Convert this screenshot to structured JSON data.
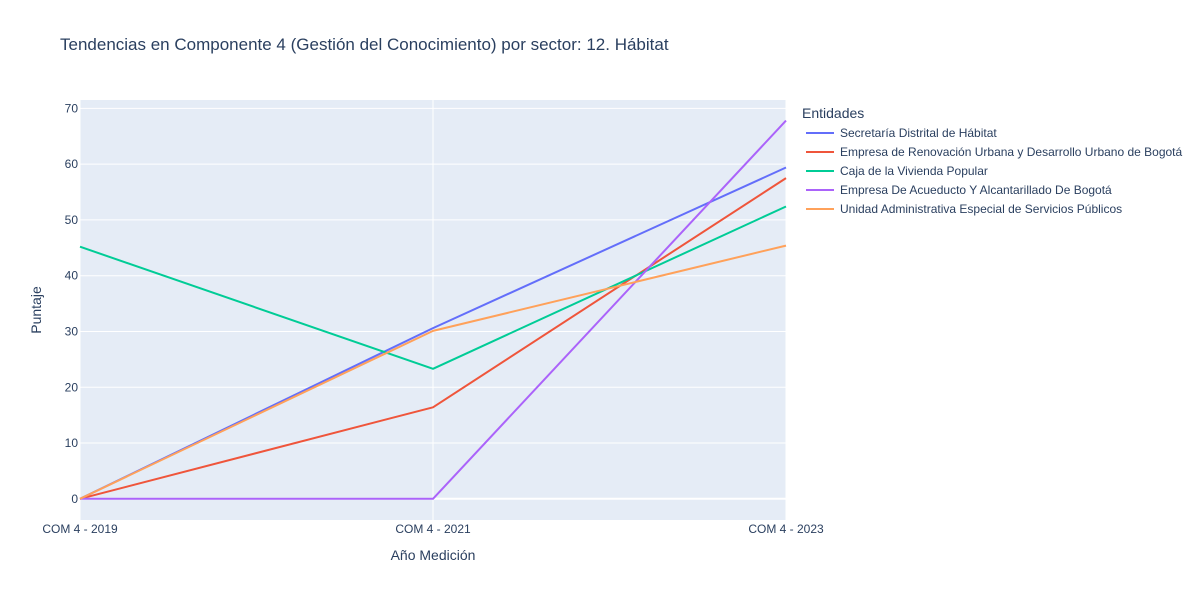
{
  "chart_data": {
    "type": "line",
    "title": "Tendencias en Componente 4 (Gestión del Conocimiento) por sector: 12. Hábitat",
    "xlabel": "Año Medición",
    "ylabel": "Puntaje",
    "categories": [
      "COM 4 - 2019",
      "COM 4 - 2021",
      "COM 4 - 2023"
    ],
    "y_ticks": [
      0,
      10,
      20,
      30,
      40,
      50,
      60,
      70
    ],
    "ylim": [
      -3.8,
      71.5
    ],
    "grid": true,
    "legend_title": "Entidades",
    "legend_position": "right",
    "series": [
      {
        "name": "Secretaría Distrital de Hábitat",
        "color": "#636efa",
        "values": [
          0,
          30.6,
          59.4
        ]
      },
      {
        "name": "Empresa de Renovación Urbana y Desarrollo Urbano de Bogotá",
        "color": "#EF553B",
        "values": [
          0,
          16.4,
          57.5
        ]
      },
      {
        "name": "Caja de la Vivienda Popular",
        "color": "#00cc96",
        "values": [
          45.2,
          23.3,
          52.4
        ]
      },
      {
        "name": "Empresa De Acueducto Y Alcantarillado De Bogotá",
        "color": "#ab63fa",
        "values": [
          0,
          0,
          67.8
        ]
      },
      {
        "name": "Unidad Administrativa Especial de Servicios Públicos",
        "color": "#FFA15A",
        "values": [
          0,
          30.1,
          45.4
        ]
      }
    ]
  }
}
